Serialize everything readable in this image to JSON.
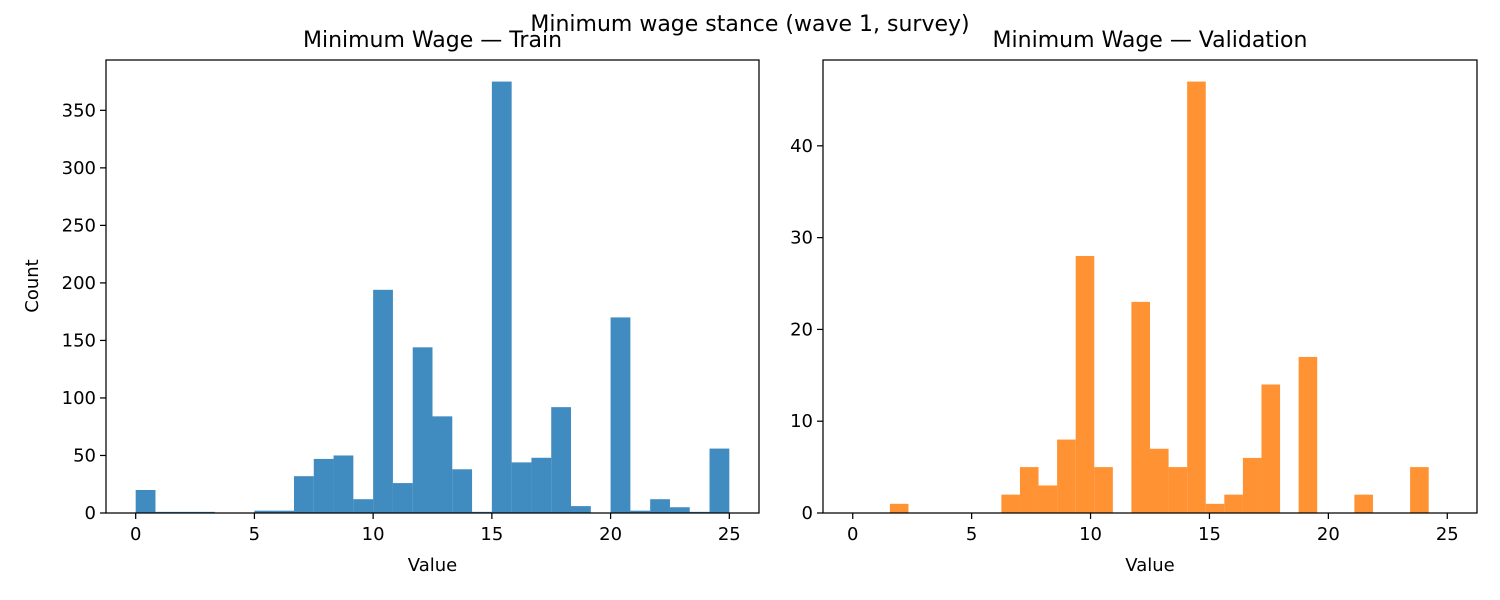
{
  "suptitle": "Minimum wage stance (wave 1, survey)",
  "chart_data": [
    {
      "type": "bar",
      "title": "Minimum Wage — Train",
      "xlabel": "Value",
      "ylabel": "Count",
      "color": "#1f77b4",
      "bar_opacity": 0.85,
      "bin_edges": [
        0,
        0.8333,
        1.6667,
        2.5,
        3.3333,
        4.1667,
        5,
        5.8333,
        6.6667,
        7.5,
        8.3333,
        9.1667,
        10,
        10.8333,
        11.6667,
        12.5,
        13.3333,
        14.1667,
        15,
        15.8333,
        16.6667,
        17.5,
        18.3333,
        19.1667,
        20,
        20.8333,
        21.6667,
        22.5,
        23.3333,
        24.1667,
        25
      ],
      "values": [
        20,
        1,
        1,
        1,
        0,
        0,
        2,
        2,
        32,
        47,
        50,
        12,
        194,
        26,
        144,
        84,
        38,
        1,
        375,
        44,
        48,
        92,
        6,
        0,
        170,
        2,
        12,
        5,
        1,
        56
      ],
      "xlim": [
        -1.25,
        26.25
      ],
      "ylim": [
        0,
        393.75
      ],
      "xticks": [
        0,
        5,
        10,
        15,
        20,
        25
      ],
      "yticks": [
        0,
        50,
        100,
        150,
        200,
        250,
        300,
        350
      ]
    },
    {
      "type": "bar",
      "title": "Minimum Wage — Validation",
      "xlabel": "Value",
      "ylabel": "",
      "color": "#ff7f0e",
      "bar_opacity": 0.85,
      "bin_edges": [
        0,
        0.7813,
        1.5625,
        2.3438,
        3.125,
        3.9063,
        4.6875,
        5.4688,
        6.25,
        7.0313,
        7.8125,
        8.5938,
        9.375,
        10.1563,
        10.9375,
        11.7188,
        12.5,
        13.2813,
        14.0625,
        14.8438,
        15.625,
        16.4063,
        17.1875,
        17.9688,
        18.75,
        19.5313,
        20.3125,
        21.0938,
        21.875,
        22.6563,
        23.4375,
        24.2188,
        25
      ],
      "values": [
        0,
        0,
        1,
        0,
        0,
        0,
        0,
        0,
        2,
        5,
        3,
        8,
        28,
        5,
        0,
        23,
        7,
        5,
        47,
        1,
        2,
        6,
        14,
        0,
        17,
        0,
        0,
        2,
        0,
        0,
        5,
        0
      ],
      "xlim": [
        -1.25,
        26.25
      ],
      "ylim": [
        0,
        49.35
      ],
      "xticks": [
        0,
        5,
        10,
        15,
        20,
        25
      ],
      "yticks": [
        0,
        10,
        20,
        30,
        40
      ]
    }
  ]
}
